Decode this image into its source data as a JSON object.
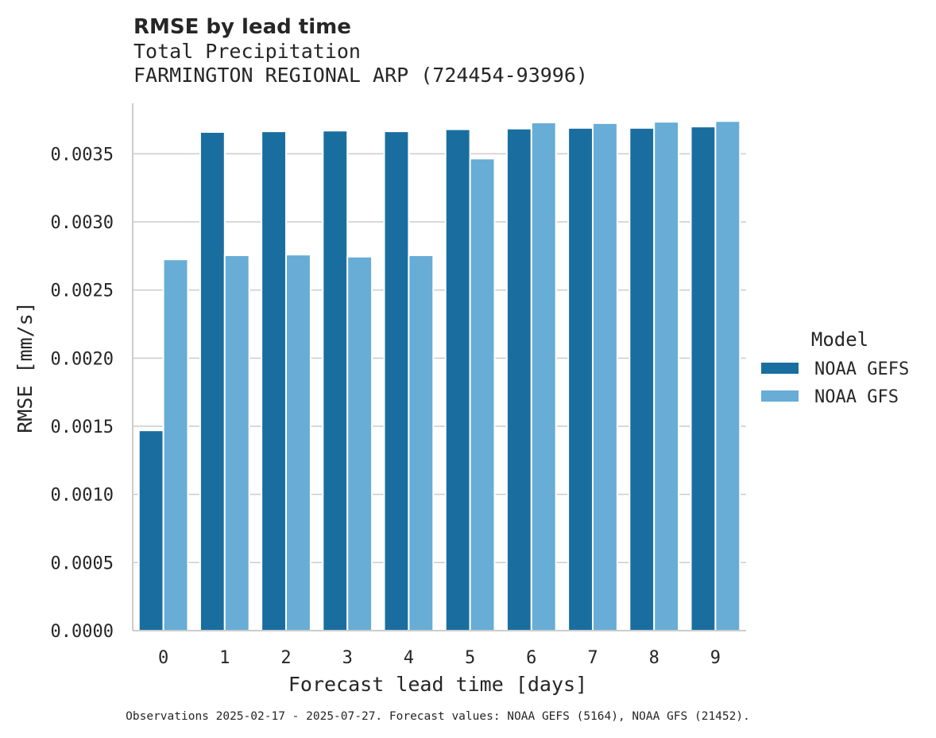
{
  "chart_data": {
    "type": "bar",
    "title": "RMSE by lead time",
    "subtitle_lines": [
      "Total Precipitation",
      "FARMINGTON REGIONAL ARP (724454-93996)"
    ],
    "xlabel": "Forecast lead time [days]",
    "ylabel": "RMSE [mm/s]",
    "categories": [
      "0",
      "1",
      "2",
      "3",
      "4",
      "5",
      "6",
      "7",
      "8",
      "9"
    ],
    "ylim": [
      0,
      0.00387
    ],
    "yticks": [
      0.0,
      0.0005,
      0.001,
      0.0015,
      0.002,
      0.0025,
      0.003,
      0.0035
    ],
    "ytick_labels": [
      "0.0000",
      "0.0005",
      "0.0010",
      "0.0015",
      "0.0020",
      "0.0025",
      "0.0030",
      "0.0035"
    ],
    "grid": "horizontal",
    "legend": {
      "title": "Model",
      "placement": "right"
    },
    "series": [
      {
        "name": "NOAA GEFS",
        "color": "#1a6e9f",
        "values": [
          0.00147,
          0.00366,
          0.003665,
          0.00367,
          0.003665,
          0.00368,
          0.003685,
          0.00369,
          0.00369,
          0.0037
        ]
      },
      {
        "name": "NOAA GFS",
        "color": "#67add6",
        "values": [
          0.002725,
          0.002755,
          0.00276,
          0.002745,
          0.002755,
          0.003465,
          0.00373,
          0.003725,
          0.003735,
          0.00374
        ]
      }
    ],
    "footnote": "Observations 2025-02-17 - 2025-07-27. Forecast values: NOAA GEFS (5164), NOAA GFS (21452)."
  }
}
